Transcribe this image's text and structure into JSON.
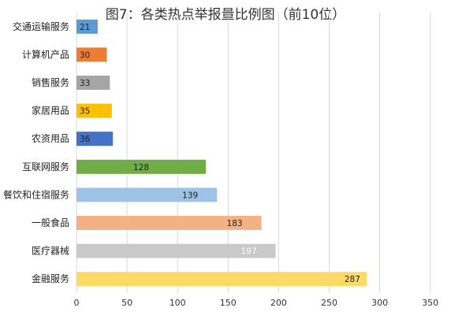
{
  "chart_data": {
    "type": "bar",
    "orientation": "horizontal",
    "title": "图7：各类热点举报量比例图（前10位）",
    "categories": [
      "交通运输服务",
      "计算机产品",
      "销售服务",
      "家居用品",
      "农资用品",
      "互联网服务",
      "餐饮和住宿服务",
      "一般食品",
      "医疗器械",
      "金融服务"
    ],
    "values": [
      21,
      30,
      33,
      35,
      36,
      128,
      139,
      183,
      197,
      287
    ],
    "bar_colors": [
      "#5b9bd5",
      "#ed7d31",
      "#a5a5a5",
      "#ffc000",
      "#4472c4",
      "#70ad47",
      "#9dc3e6",
      "#f4b183",
      "#c9c9c9",
      "#ffd966"
    ],
    "label_colors": [
      "#222222",
      "#222222",
      "#222222",
      "#222222",
      "#222222",
      "#222222",
      "#222222",
      "#222222",
      "#ffffff",
      "#222222"
    ],
    "xlim": [
      0,
      350
    ],
    "xticks": [
      "0",
      "50",
      "100",
      "150",
      "200",
      "250",
      "300",
      "350"
    ],
    "xlabel": "",
    "ylabel": "",
    "grid": "vertical",
    "legend": "none"
  }
}
